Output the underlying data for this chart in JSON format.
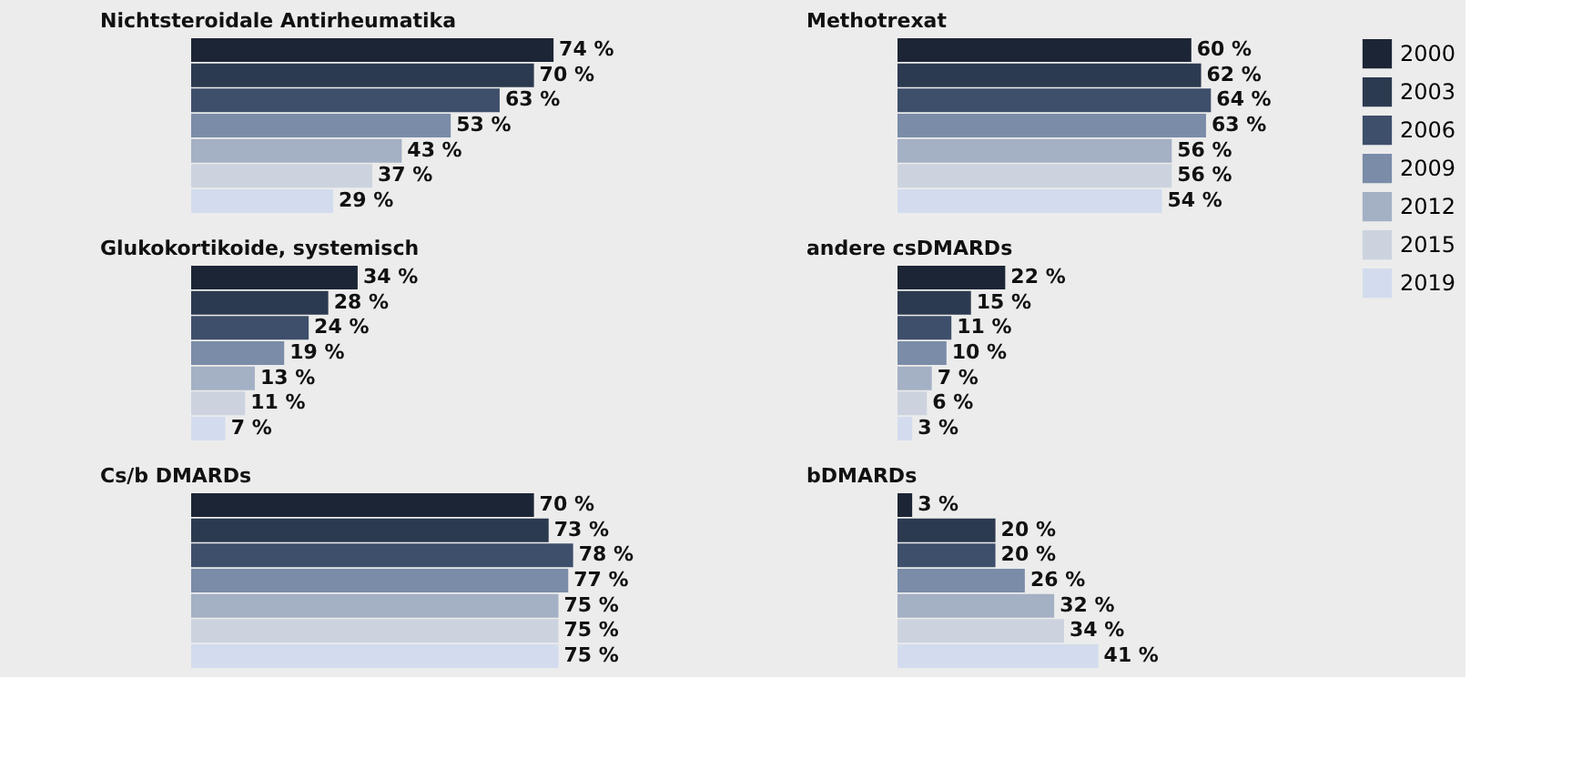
{
  "chart_data": [
    {
      "type": "bar",
      "orientation": "horizontal",
      "title": "Nichtsteroidale Antirheumatika",
      "categories": [
        null
      ],
      "legend": "right",
      "series": [
        {
          "name": "2000",
          "color": "#1c2535",
          "values": [
            74
          ],
          "value_labels": [
            "74 %"
          ]
        },
        {
          "name": "2003",
          "color": "#2c3a50",
          "values": [
            70
          ],
          "value_labels": [
            "70 %"
          ]
        },
        {
          "name": "2006",
          "color": "#3e4f6b",
          "values": [
            63
          ],
          "value_labels": [
            "63 %"
          ]
        },
        {
          "name": "2009",
          "color": "#7a8ca8",
          "values": [
            53
          ],
          "value_labels": [
            "53 %"
          ]
        },
        {
          "name": "2012",
          "color": "#a4b0c4",
          "values": [
            43
          ],
          "value_labels": [
            "43 %"
          ]
        },
        {
          "name": "2015",
          "color": "#ccd3df",
          "values": [
            37
          ],
          "value_labels": [
            "37 %"
          ]
        },
        {
          "name": "2019",
          "color": "#d3dcee",
          "values": [
            29
          ],
          "value_labels": [
            "29 %"
          ]
        }
      ]
    },
    {
      "type": "bar",
      "orientation": "horizontal",
      "title": "Methotrexat",
      "categories": [
        null
      ],
      "legend": "right",
      "series": [
        {
          "name": "2000",
          "color": "#1c2535",
          "values": [
            60
          ],
          "value_labels": [
            "60 %"
          ]
        },
        {
          "name": "2003",
          "color": "#2c3a50",
          "values": [
            62
          ],
          "value_labels": [
            "62 %"
          ]
        },
        {
          "name": "2006",
          "color": "#3e4f6b",
          "values": [
            64
          ],
          "value_labels": [
            "64 %"
          ]
        },
        {
          "name": "2009",
          "color": "#7a8ca8",
          "values": [
            63
          ],
          "value_labels": [
            "63 %"
          ]
        },
        {
          "name": "2012",
          "color": "#a4b0c4",
          "values": [
            56
          ],
          "value_labels": [
            "56 %"
          ]
        },
        {
          "name": "2015",
          "color": "#ccd3df",
          "values": [
            56
          ],
          "value_labels": [
            "56 %"
          ]
        },
        {
          "name": "2019",
          "color": "#d3dcee",
          "values": [
            54
          ],
          "value_labels": [
            "54 %"
          ]
        }
      ]
    },
    {
      "type": "bar",
      "orientation": "horizontal",
      "title": "Glukokortikoide, systemisch",
      "categories": [
        null
      ],
      "legend": "right",
      "series": [
        {
          "name": "2000",
          "color": "#1c2535",
          "values": [
            34
          ],
          "value_labels": [
            "34 %"
          ]
        },
        {
          "name": "2003",
          "color": "#2c3a50",
          "values": [
            28
          ],
          "value_labels": [
            "28 %"
          ]
        },
        {
          "name": "2006",
          "color": "#3e4f6b",
          "values": [
            24
          ],
          "value_labels": [
            "24 %"
          ]
        },
        {
          "name": "2009",
          "color": "#7a8ca8",
          "values": [
            19
          ],
          "value_labels": [
            "19 %"
          ]
        },
        {
          "name": "2012",
          "color": "#a4b0c4",
          "values": [
            13
          ],
          "value_labels": [
            "13 %"
          ]
        },
        {
          "name": "2015",
          "color": "#ccd3df",
          "values": [
            11
          ],
          "value_labels": [
            "11 %"
          ]
        },
        {
          "name": "2019",
          "color": "#d3dcee",
          "values": [
            7
          ],
          "value_labels": [
            "7 %"
          ]
        }
      ]
    },
    {
      "type": "bar",
      "orientation": "horizontal",
      "title": "andere csDMARDs",
      "categories": [
        null
      ],
      "legend": "right",
      "series": [
        {
          "name": "2000",
          "color": "#1c2535",
          "values": [
            22
          ],
          "value_labels": [
            "22 %"
          ]
        },
        {
          "name": "2003",
          "color": "#2c3a50",
          "values": [
            15
          ],
          "value_labels": [
            "15 %"
          ]
        },
        {
          "name": "2006",
          "color": "#3e4f6b",
          "values": [
            11
          ],
          "value_labels": [
            "11 %"
          ]
        },
        {
          "name": "2009",
          "color": "#7a8ca8",
          "values": [
            10
          ],
          "value_labels": [
            "10 %"
          ]
        },
        {
          "name": "2012",
          "color": "#a4b0c4",
          "values": [
            7
          ],
          "value_labels": [
            "7 %"
          ]
        },
        {
          "name": "2015",
          "color": "#ccd3df",
          "values": [
            6
          ],
          "value_labels": [
            "6 %"
          ]
        },
        {
          "name": "2019",
          "color": "#d3dcee",
          "values": [
            3
          ],
          "value_labels": [
            "3 %"
          ]
        }
      ]
    },
    {
      "type": "bar",
      "orientation": "horizontal",
      "title": "Cs/b DMARDs",
      "categories": [
        null
      ],
      "legend": "right",
      "series": [
        {
          "name": "2000",
          "color": "#1c2535",
          "values": [
            70
          ],
          "value_labels": [
            "70 %"
          ]
        },
        {
          "name": "2003",
          "color": "#2c3a50",
          "values": [
            73
          ],
          "value_labels": [
            "73 %"
          ]
        },
        {
          "name": "2006",
          "color": "#3e4f6b",
          "values": [
            78
          ],
          "value_labels": [
            "78 %"
          ]
        },
        {
          "name": "2009",
          "color": "#7a8ca8",
          "values": [
            77
          ],
          "value_labels": [
            "77 %"
          ]
        },
        {
          "name": "2012",
          "color": "#a4b0c4",
          "values": [
            75
          ],
          "value_labels": [
            "75 %"
          ]
        },
        {
          "name": "2015",
          "color": "#ccd3df",
          "values": [
            75
          ],
          "value_labels": [
            "75 %"
          ]
        },
        {
          "name": "2019",
          "color": "#d3dcee",
          "values": [
            75
          ],
          "value_labels": [
            "75 %"
          ]
        }
      ]
    },
    {
      "type": "bar",
      "orientation": "horizontal",
      "title": "bDMARDs",
      "categories": [
        null
      ],
      "legend": "right",
      "series": [
        {
          "name": "2000",
          "color": "#1c2535",
          "values": [
            3
          ],
          "value_labels": [
            "3 %"
          ]
        },
        {
          "name": "2003",
          "color": "#2c3a50",
          "values": [
            20
          ],
          "value_labels": [
            "20 %"
          ]
        },
        {
          "name": "2006",
          "color": "#3e4f6b",
          "values": [
            20
          ],
          "value_labels": [
            "20 %"
          ]
        },
        {
          "name": "2009",
          "color": "#7a8ca8",
          "values": [
            26
          ],
          "value_labels": [
            "26 %"
          ]
        },
        {
          "name": "2012",
          "color": "#a4b0c4",
          "values": [
            32
          ],
          "value_labels": [
            "32 %"
          ]
        },
        {
          "name": "2015",
          "color": "#ccd3df",
          "values": [
            34
          ],
          "value_labels": [
            "34 %"
          ]
        },
        {
          "name": "2019",
          "color": "#d3dcee",
          "values": [
            41
          ],
          "value_labels": [
            "41 %"
          ]
        }
      ]
    }
  ]
}
